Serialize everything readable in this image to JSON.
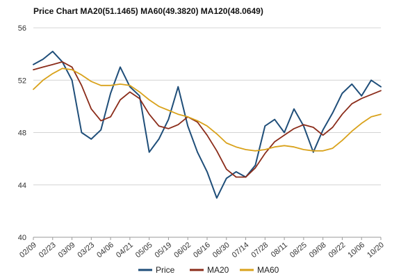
{
  "chart_data": {
    "type": "line",
    "title": "Price Chart MA20(51.1465) MA60(49.3820) MA120(48.0649)",
    "ylim": [
      40,
      56
    ],
    "y_ticks": [
      "40",
      "44",
      "48",
      "52",
      "56"
    ],
    "x_tick_labels": [
      "02/09",
      "02/23",
      "03/09",
      "03/23",
      "04/06",
      "04/21",
      "05/05",
      "05/19",
      "06/02",
      "06/16",
      "06/30",
      "07/14",
      "07/28",
      "08/11",
      "08/25",
      "09/08",
      "09/22",
      "10/06",
      "10/20"
    ],
    "grid": true,
    "legend_position": "bottom",
    "x": [
      "02/09",
      "02/16",
      "02/23",
      "03/02",
      "03/09",
      "03/16",
      "03/23",
      "03/30",
      "04/06",
      "04/13",
      "04/21",
      "04/28",
      "05/05",
      "05/12",
      "05/19",
      "05/26",
      "06/02",
      "06/09",
      "06/16",
      "06/23",
      "06/30",
      "07/07",
      "07/14",
      "07/21",
      "07/28",
      "08/04",
      "08/11",
      "08/18",
      "08/25",
      "09/01",
      "09/08",
      "09/15",
      "09/22",
      "09/29",
      "10/06",
      "10/13",
      "10/20"
    ],
    "series": [
      {
        "name": "Price",
        "color": "#1f4e79",
        "values": [
          53.2,
          53.6,
          54.2,
          53.4,
          52.0,
          48.0,
          47.5,
          48.2,
          51.0,
          53.0,
          51.5,
          50.8,
          46.5,
          47.5,
          49.0,
          51.5,
          48.5,
          46.5,
          45.0,
          43.0,
          44.5,
          45.0,
          44.6,
          45.5,
          48.5,
          49.0,
          48.0,
          49.8,
          48.5,
          46.5,
          48.2,
          49.5,
          51.0,
          51.7,
          50.8,
          52.0,
          51.5
        ]
      },
      {
        "name": "MA20",
        "color": "#8b2c1a",
        "values": [
          52.8,
          53.0,
          53.2,
          53.4,
          53.0,
          51.6,
          49.8,
          48.9,
          49.2,
          50.5,
          51.1,
          50.6,
          49.4,
          48.5,
          48.3,
          48.6,
          49.2,
          48.8,
          47.8,
          46.6,
          45.2,
          44.6,
          44.6,
          45.3,
          46.4,
          47.3,
          47.8,
          48.3,
          48.6,
          48.4,
          47.8,
          48.4,
          49.4,
          50.2,
          50.6,
          50.9,
          51.2
        ]
      },
      {
        "name": "MA60",
        "color": "#d9a21b",
        "values": [
          51.3,
          52.0,
          52.5,
          52.9,
          52.8,
          52.4,
          51.9,
          51.6,
          51.6,
          51.7,
          51.6,
          51.1,
          50.5,
          50.0,
          49.7,
          49.4,
          49.2,
          48.9,
          48.5,
          47.9,
          47.2,
          46.9,
          46.7,
          46.6,
          46.7,
          46.9,
          47.0,
          46.9,
          46.7,
          46.6,
          46.6,
          46.8,
          47.4,
          48.1,
          48.7,
          49.2,
          49.4
        ]
      }
    ]
  }
}
